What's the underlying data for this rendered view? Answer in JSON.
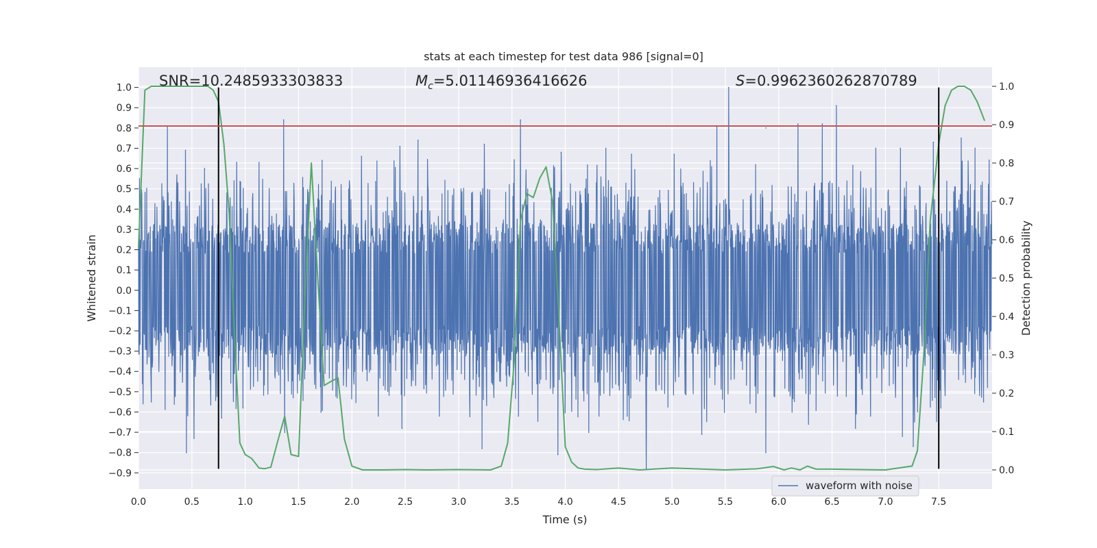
{
  "chart_data": {
    "type": "line",
    "title": "stats at each timestep for test data 986 [signal=0]",
    "xlabel": "Time (s)",
    "ylabel": "Whitened strain",
    "y2label": "Detection probability",
    "xlim": [
      0,
      8
    ],
    "ylim": [
      -0.98,
      1.1
    ],
    "y2lim": [
      -0.05,
      1.05
    ],
    "x_ticks": [
      0.0,
      0.5,
      1.0,
      1.5,
      2.0,
      2.5,
      3.0,
      3.5,
      4.0,
      4.5,
      5.0,
      5.5,
      6.0,
      6.5,
      7.0,
      7.5
    ],
    "x_tick_labels": [
      "0.0",
      "0.5",
      "1.0",
      "1.5",
      "2.0",
      "2.5",
      "3.0",
      "3.5",
      "4.0",
      "4.5",
      "5.0",
      "5.5",
      "6.0",
      "6.5",
      "7.0",
      "7.5"
    ],
    "y_ticks": [
      1.0,
      0.9,
      0.8,
      0.7,
      0.6,
      0.5,
      0.4,
      0.3,
      0.2,
      0.1,
      0.0,
      -0.1,
      -0.2,
      -0.3,
      -0.4,
      -0.5,
      -0.6,
      -0.7,
      -0.8,
      -0.9
    ],
    "y_tick_labels": [
      "1.0",
      "0.9",
      "0.8",
      "0.7",
      "0.6",
      "0.5",
      "0.4",
      "0.3",
      "0.2",
      "0.1",
      "0.0",
      "−0.1",
      "−0.2",
      "−0.3",
      "−0.4",
      "−0.5",
      "−0.6",
      "−0.7",
      "−0.8",
      "−0.9"
    ],
    "y2_ticks": [
      1.0,
      0.9,
      0.8,
      0.7,
      0.6,
      0.5,
      0.4,
      0.3,
      0.2,
      0.1,
      0.0
    ],
    "y2_tick_labels": [
      "1.0",
      "0.9",
      "0.8",
      "0.7",
      "0.6",
      "0.5",
      "0.4",
      "0.3",
      "0.2",
      "0.1",
      "0.0"
    ],
    "grid": true,
    "legend_position": "bottom-right",
    "annotations": {
      "snr": "SNR=10.2485933303833",
      "mc_symbol": "M",
      "mc_sub": "c",
      "mc_value": "=5.01146936416626",
      "s_symbol": "S",
      "s_value": "=0.9962360262870789"
    },
    "threshold_line": {
      "y": 0.81,
      "color": "#c44e52"
    },
    "vertical_markers": {
      "x": [
        0.75,
        7.5
      ],
      "y_range": [
        -0.88,
        1.0
      ],
      "color": "#000000"
    },
    "series": [
      {
        "name": "waveform with noise",
        "axis": "left",
        "color": "#4c72b0",
        "style": "dense-noise",
        "typical_envelope": [
          -0.32,
          0.33
        ],
        "peaks": [
          {
            "x": 0.27,
            "y": 0.81
          },
          {
            "x": 0.44,
            "y": 0.69
          },
          {
            "x": 0.62,
            "y": 0.6
          },
          {
            "x": 0.92,
            "y": 0.63
          },
          {
            "x": 1.13,
            "y": 0.63
          },
          {
            "x": 1.36,
            "y": 0.84
          },
          {
            "x": 1.72,
            "y": 0.64
          },
          {
            "x": 2.09,
            "y": 0.66
          },
          {
            "x": 2.45,
            "y": 0.71
          },
          {
            "x": 2.62,
            "y": 0.74
          },
          {
            "x": 2.82,
            "y": 0.81
          },
          {
            "x": 3.24,
            "y": 0.72
          },
          {
            "x": 3.58,
            "y": 0.84
          },
          {
            "x": 3.96,
            "y": 0.68
          },
          {
            "x": 4.38,
            "y": 0.7
          },
          {
            "x": 4.62,
            "y": 0.67
          },
          {
            "x": 5.02,
            "y": 0.67
          },
          {
            "x": 5.42,
            "y": 0.81
          },
          {
            "x": 5.53,
            "y": 1.0
          },
          {
            "x": 5.88,
            "y": 0.8
          },
          {
            "x": 6.18,
            "y": 0.82
          },
          {
            "x": 6.41,
            "y": 0.82
          },
          {
            "x": 6.54,
            "y": 0.91
          },
          {
            "x": 6.91,
            "y": 0.7
          },
          {
            "x": 7.14,
            "y": 0.7
          },
          {
            "x": 7.45,
            "y": 0.73
          },
          {
            "x": 7.71,
            "y": 0.75
          },
          {
            "x": 7.84,
            "y": 0.7
          }
        ],
        "troughs": [
          {
            "x": 0.12,
            "y": -0.55
          },
          {
            "x": 0.45,
            "y": -0.8
          },
          {
            "x": 0.52,
            "y": -0.73
          },
          {
            "x": 0.78,
            "y": -0.63
          },
          {
            "x": 0.98,
            "y": -0.58
          },
          {
            "x": 1.37,
            "y": -0.7
          },
          {
            "x": 1.71,
            "y": -0.6
          },
          {
            "x": 2.47,
            "y": -0.68
          },
          {
            "x": 2.82,
            "y": -0.62
          },
          {
            "x": 3.22,
            "y": -0.78
          },
          {
            "x": 3.56,
            "y": -0.62
          },
          {
            "x": 3.93,
            "y": -0.81
          },
          {
            "x": 4.22,
            "y": -0.7
          },
          {
            "x": 4.58,
            "y": -0.62
          },
          {
            "x": 4.76,
            "y": -0.88
          },
          {
            "x": 5.28,
            "y": -0.71
          },
          {
            "x": 5.88,
            "y": -0.8
          },
          {
            "x": 6.28,
            "y": -0.66
          },
          {
            "x": 6.72,
            "y": -0.68
          },
          {
            "x": 6.86,
            "y": -0.62
          },
          {
            "x": 7.16,
            "y": -0.72
          },
          {
            "x": 7.26,
            "y": -0.77
          },
          {
            "x": 7.52,
            "y": -0.58
          },
          {
            "x": 7.92,
            "y": -0.55
          }
        ]
      },
      {
        "name": "detection probability",
        "axis": "right",
        "color": "#55a868",
        "x": [
          0.0,
          0.06,
          0.12,
          0.2,
          0.35,
          0.5,
          0.65,
          0.7,
          0.75,
          0.8,
          0.85,
          0.9,
          0.95,
          1.0,
          1.06,
          1.13,
          1.18,
          1.24,
          1.3,
          1.37,
          1.43,
          1.5,
          1.56,
          1.62,
          1.68,
          1.74,
          1.8,
          1.87,
          1.93,
          2.0,
          2.1,
          2.3,
          2.5,
          2.7,
          3.0,
          3.3,
          3.4,
          3.46,
          3.52,
          3.58,
          3.64,
          3.7,
          3.76,
          3.82,
          3.88,
          3.94,
          4.0,
          4.06,
          4.12,
          4.18,
          4.3,
          4.5,
          4.7,
          5.0,
          5.5,
          5.8,
          5.95,
          6.05,
          6.12,
          6.2,
          6.27,
          6.35,
          6.5,
          7.0,
          7.25,
          7.3,
          7.36,
          7.42,
          7.5,
          7.56,
          7.62,
          7.68,
          7.74,
          7.8,
          7.86,
          7.93
        ],
        "y": [
          0.58,
          0.99,
          1.0,
          1.0,
          1.0,
          1.0,
          1.0,
          0.99,
          0.96,
          0.85,
          0.67,
          0.35,
          0.07,
          0.04,
          0.03,
          0.005,
          0.003,
          0.007,
          0.07,
          0.14,
          0.04,
          0.035,
          0.45,
          0.8,
          0.5,
          0.22,
          0.23,
          0.24,
          0.08,
          0.01,
          0.0,
          0.0,
          0.001,
          0.0,
          0.001,
          0.0,
          0.01,
          0.07,
          0.28,
          0.65,
          0.72,
          0.71,
          0.76,
          0.79,
          0.7,
          0.4,
          0.06,
          0.02,
          0.005,
          0.002,
          0.001,
          0.005,
          0.0,
          0.005,
          0.0,
          0.003,
          0.009,
          0.0,
          0.005,
          0.0,
          0.01,
          0.002,
          0.002,
          0.0,
          0.01,
          0.05,
          0.3,
          0.65,
          0.85,
          0.95,
          0.99,
          1.0,
          1.0,
          0.99,
          0.96,
          0.91
        ]
      }
    ]
  }
}
